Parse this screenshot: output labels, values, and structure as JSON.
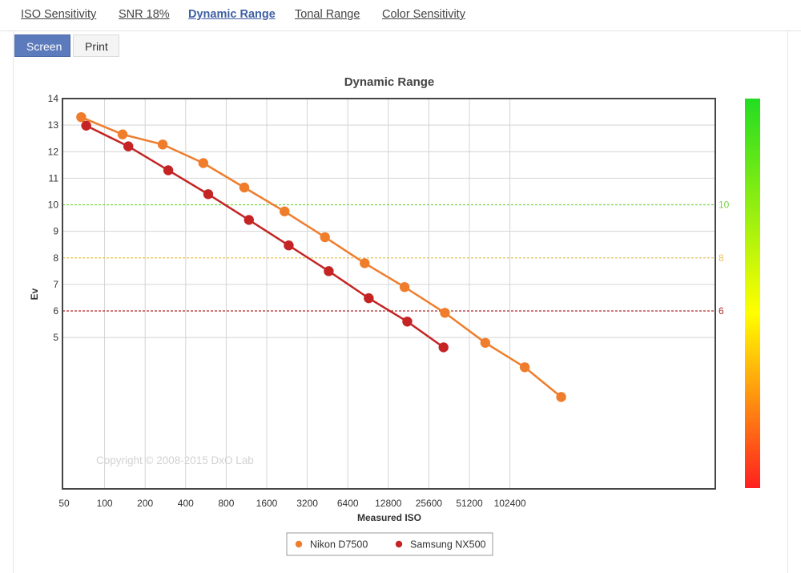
{
  "tabs": [
    {
      "label": "ISO Sensitivity",
      "active": false
    },
    {
      "label": "SNR 18%",
      "active": false
    },
    {
      "label": "Dynamic Range",
      "active": true
    },
    {
      "label": "Tonal Range",
      "active": false
    },
    {
      "label": "Color Sensitivity",
      "active": false
    }
  ],
  "subtabs": [
    {
      "label": "Screen",
      "active": true
    },
    {
      "label": "Print",
      "active": false
    }
  ],
  "copyright": "Copyright © 2008-2015 DxO Lab",
  "chart_data": {
    "type": "line",
    "title": "Dynamic Range",
    "xlabel": "Measured ISO",
    "ylabel": "Ev",
    "x_scale": "log2",
    "x_ticks": [
      "50",
      "100",
      "200",
      "400",
      "800",
      "1600",
      "3200",
      "6400",
      "12800",
      "25600",
      "51200",
      "102400"
    ],
    "y_ticks": [
      5,
      6,
      7,
      8,
      9,
      10,
      11,
      12,
      13,
      14
    ],
    "ylim": [
      -0.7,
      14
    ],
    "grid": true,
    "legend_position": "bottom-center",
    "reference_lines": [
      {
        "y": 10,
        "label": "10",
        "color": "#7bd448"
      },
      {
        "y": 8,
        "label": "8",
        "color": "#e8c35a"
      },
      {
        "y": 6,
        "label": "6",
        "color": "#b22a2a"
      }
    ],
    "colorbar": {
      "top_color": "#22dd22",
      "mid_color": "#ffff00",
      "bottom_color": "#ff2020"
    },
    "series": [
      {
        "name": "Nikon D7500",
        "color": "#ef7d2c",
        "points": [
          [
            67,
            13.3
          ],
          [
            136,
            12.65
          ],
          [
            270,
            12.27
          ],
          [
            541,
            11.57
          ],
          [
            1090,
            10.65
          ],
          [
            2170,
            9.75
          ],
          [
            4330,
            8.78
          ],
          [
            8540,
            7.8
          ],
          [
            16900,
            6.9
          ],
          [
            33700,
            5.93
          ],
          [
            67200,
            4.8
          ],
          [
            132000,
            3.88
          ],
          [
            246000,
            2.76
          ]
        ]
      },
      {
        "name": "Samsung NX500",
        "color": "#c42424",
        "points": [
          [
            73,
            12.98
          ],
          [
            150,
            12.2
          ],
          [
            297,
            11.3
          ],
          [
            588,
            10.4
          ],
          [
            1180,
            9.43
          ],
          [
            2330,
            8.47
          ],
          [
            4620,
            7.5
          ],
          [
            9160,
            6.48
          ],
          [
            17700,
            5.6
          ],
          [
            32900,
            4.63
          ]
        ]
      }
    ]
  }
}
